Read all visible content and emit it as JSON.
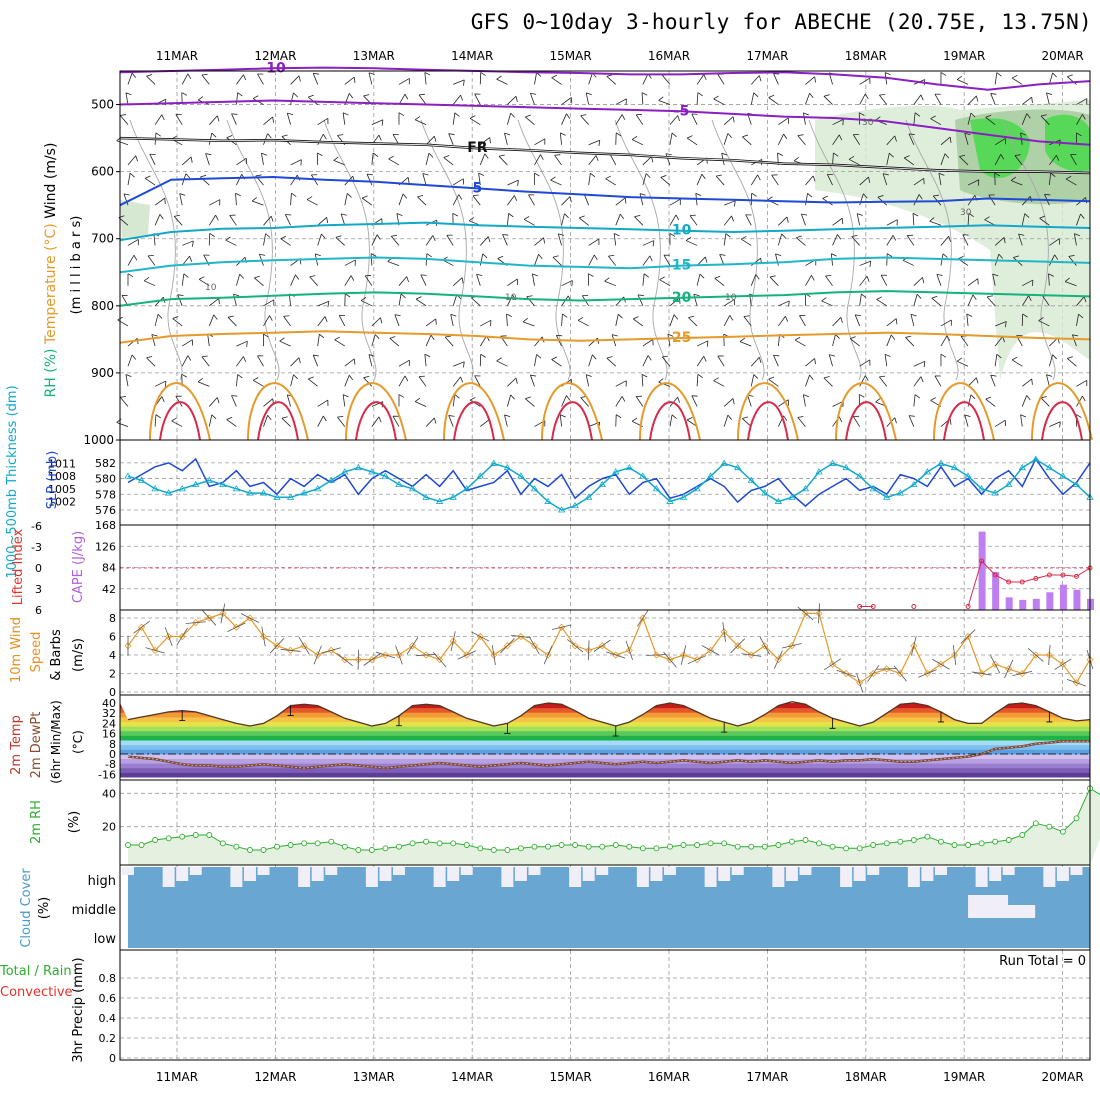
{
  "title": "GFS 0~10day 3-hourly for ABECHE (20.75E, 13.75N)",
  "colors": {
    "purple": "#8a1fc2",
    "blue": "#1f49d6",
    "teal": "#1fb7c8",
    "cyan": "#12a9c9",
    "green": "#13b37b",
    "orange": "#e69a2a",
    "red": "#d82b4a",
    "magenta": "#c21a78",
    "precipLabel": "#e5332a",
    "rhGreen": "#2fae2f",
    "cloudBlue": "#6aa6d2"
  },
  "chart_data": [
    {
      "type": "line",
      "panel": "upper-air",
      "title": "",
      "ylabel_parts": [
        "Wind (m/s)",
        "Temperature (°C)",
        "RH (%)"
      ],
      "ylabel_units": "(m i l l i b a r s)",
      "x": [
        "11MAR",
        "12MAR",
        "13MAR",
        "14MAR",
        "15MAR",
        "16MAR",
        "17MAR",
        "18MAR",
        "19MAR",
        "20MAR"
      ],
      "yticks": [
        "500",
        "600",
        "700",
        "800",
        "900",
        "1000"
      ],
      "ylim": [
        1000,
        450
      ],
      "isotherms": [
        {
          "name": "-10",
          "label": "-10",
          "p": [
            452,
            450,
            448,
            446,
            445,
            446,
            448,
            450,
            452,
            453,
            455,
            455,
            453,
            452,
            455,
            460,
            470,
            478,
            470,
            465
          ]
        },
        {
          "name": "-5",
          "label": "-5",
          "p": [
            500,
            498,
            496,
            494,
            496,
            498,
            500,
            502,
            504,
            506,
            508,
            510,
            514,
            518,
            520,
            525,
            535,
            545,
            555,
            560
          ]
        },
        {
          "name": "0",
          "label": "FR",
          "p": [
            550,
            552,
            554,
            553,
            556,
            558,
            560,
            565,
            568,
            572,
            575,
            580,
            583,
            588,
            590,
            594,
            598,
            600,
            600,
            602
          ]
        },
        {
          "name": "5",
          "label": "5",
          "p": [
            650,
            612,
            610,
            608,
            612,
            615,
            620,
            625,
            630,
            634,
            638,
            640,
            642,
            644,
            646,
            645,
            644,
            640,
            642,
            644
          ]
        },
        {
          "name": "10",
          "label": "10",
          "p": [
            702,
            690,
            685,
            684,
            680,
            678,
            676,
            680,
            682,
            684,
            686,
            688,
            690,
            688,
            686,
            684,
            682,
            680,
            682,
            684
          ]
        },
        {
          "name": "15",
          "label": "15",
          "p": [
            750,
            740,
            735,
            732,
            730,
            728,
            730,
            735,
            740,
            742,
            744,
            740,
            738,
            735,
            730,
            728,
            730,
            732,
            734,
            736
          ]
        },
        {
          "name": "20",
          "label": "20",
          "p": [
            800,
            790,
            788,
            785,
            782,
            780,
            782,
            786,
            790,
            792,
            790,
            788,
            786,
            784,
            780,
            778,
            780,
            782,
            784,
            786
          ]
        },
        {
          "name": "25",
          "label": "25",
          "p": [
            855,
            845,
            842,
            840,
            838,
            840,
            842,
            845,
            850,
            852,
            850,
            848,
            846,
            844,
            842,
            840,
            842,
            845,
            848,
            850
          ]
        }
      ],
      "contour_labels": [
        "30",
        "30",
        "10",
        "10",
        "10"
      ]
    },
    {
      "type": "line",
      "panel": "thickness-slp",
      "ylabel": "1000~500mb Thickness (dm)",
      "ylabel2": "SLP (mb)",
      "yticks_left": [
        "576",
        "578",
        "580",
        "582"
      ],
      "yticks_right": [
        "1002",
        "1005",
        "1008",
        "1011"
      ],
      "series": [
        {
          "name": "Thickness",
          "values": [
            579.5,
            580.5,
            581.5,
            582,
            581,
            582.5,
            579,
            579.5,
            581,
            579,
            579.5,
            578,
            580,
            579,
            580.5,
            579.5,
            580.5,
            578,
            580,
            581,
            580,
            579,
            580.5,
            579,
            581,
            578.5,
            579,
            579.5,
            581,
            578,
            580,
            579,
            580.5,
            577.5,
            579,
            580,
            580.5,
            578,
            579.5,
            580,
            577.5,
            578,
            579,
            580,
            579,
            577,
            578.5,
            579,
            580,
            578,
            576.5,
            578,
            579,
            580,
            578.5,
            579,
            578,
            580.5,
            580,
            579,
            581.5,
            579,
            580,
            578,
            580,
            581,
            579,
            582.5,
            580,
            578,
            579.5,
            582
          ],
          "color": "#1f49d6"
        },
        {
          "name": "SLP",
          "values": [
            1008,
            1007,
            1005,
            1004,
            1005,
            1006,
            1007,
            1006,
            1005,
            1004,
            1004,
            1003,
            1003,
            1004,
            1005,
            1007,
            1009,
            1010,
            1009,
            1008,
            1006,
            1005,
            1003,
            1002,
            1003,
            1005,
            1008,
            1011,
            1010,
            1008,
            1005,
            1002,
            1000,
            1001,
            1003,
            1006,
            1009,
            1010,
            1008,
            1005,
            1002,
            1003,
            1005,
            1008,
            1011,
            1010,
            1007,
            1004,
            1002,
            1003,
            1005,
            1009,
            1011,
            1010,
            1008,
            1005,
            1003,
            1004,
            1006,
            1009,
            1011,
            1010,
            1008,
            1005,
            1004,
            1006,
            1010,
            1012,
            1010,
            1008,
            1006,
            1003
          ],
          "color": "#12a9c9"
        }
      ]
    },
    {
      "type": "bar",
      "panel": "cape-li",
      "ylabel": "Lifted Index",
      "ylabel2": "CAPE (J/kg)",
      "yticks_left": [
        "-6",
        "-3",
        "0",
        "3",
        "6"
      ],
      "yticks_right": [
        "168",
        "126",
        "84",
        "42"
      ],
      "series": [
        {
          "name": "CAPE",
          "values": [
            0,
            0,
            0,
            0,
            0,
            0,
            0,
            0,
            0,
            0,
            0,
            0,
            0,
            0,
            0,
            0,
            0,
            0,
            0,
            0,
            0,
            0,
            0,
            0,
            0,
            0,
            0,
            0,
            0,
            0,
            0,
            0,
            0,
            0,
            0,
            0,
            0,
            0,
            0,
            0,
            0,
            0,
            0,
            0,
            0,
            0,
            0,
            0,
            0,
            0,
            0,
            0,
            0,
            0,
            0,
            0,
            0,
            0,
            0,
            0,
            0,
            0,
            0,
            155,
            75,
            25,
            20,
            22,
            35,
            50,
            40,
            22
          ],
          "color": "#bf7ff0"
        },
        {
          "name": "Lifted Index",
          "values": [
            null,
            null,
            null,
            null,
            null,
            null,
            null,
            null,
            null,
            null,
            null,
            null,
            null,
            null,
            null,
            null,
            null,
            null,
            null,
            null,
            null,
            null,
            null,
            null,
            null,
            null,
            null,
            null,
            null,
            null,
            null,
            null,
            null,
            null,
            null,
            null,
            null,
            null,
            null,
            null,
            null,
            null,
            null,
            null,
            null,
            null,
            null,
            null,
            null,
            null,
            null,
            null,
            null,
            null,
            5.5,
            5.5,
            null,
            null,
            5.5,
            null,
            null,
            null,
            5.5,
            -1,
            1,
            2,
            2,
            1.5,
            1,
            1,
            1.2,
            0
          ],
          "color": "#e5332a"
        }
      ]
    },
    {
      "type": "line",
      "panel": "wind10m",
      "ylabel": "10m Wind Speed & Barbs (m/s)",
      "yticks": [
        "0",
        "2",
        "4",
        "6",
        "8"
      ],
      "ylim": [
        0,
        9.5
      ],
      "series": [
        {
          "name": "10m Wind Speed",
          "values": [
            5,
            7,
            4.5,
            6,
            6,
            7.5,
            8,
            8.5,
            7,
            8,
            6,
            5,
            4.5,
            5,
            4,
            4.5,
            3.5,
            3.5,
            3.5,
            4,
            4,
            5,
            4,
            3.5,
            5.5,
            4,
            6,
            4,
            5,
            6,
            5,
            4,
            7,
            5,
            4.5,
            5,
            4,
            4.5,
            8,
            4,
            3.5,
            4,
            3.5,
            4.5,
            6.5,
            5,
            4,
            5,
            3.5,
            5,
            8.5,
            8.5,
            3,
            2,
            1,
            2,
            2.5,
            2,
            5,
            2,
            3,
            4,
            6,
            2,
            3,
            2.5,
            2,
            4,
            4,
            3,
            1,
            3.5
          ],
          "color": "#e69a2a"
        }
      ]
    },
    {
      "type": "area",
      "panel": "temp-dew",
      "ylabel": "2m Temp",
      "ylabel2": "2m DewPt",
      "ylabel3": "(6hr Min/Max)",
      "ylabel4": "(°C)",
      "yticks": [
        "-16",
        "-8",
        "0",
        "8",
        "16",
        "24",
        "32",
        "40"
      ],
      "ylim": [
        -20,
        44
      ],
      "series": [
        {
          "name": "2m Temp",
          "values": [
            27,
            29,
            31,
            33,
            34,
            33,
            30,
            27,
            24,
            22,
            24,
            30,
            38,
            39,
            38,
            33,
            28,
            25,
            22,
            24,
            30,
            38,
            39,
            38,
            33,
            28,
            25,
            22,
            24,
            30,
            38,
            40,
            39,
            34,
            28,
            25,
            22,
            25,
            31,
            38,
            40,
            38,
            33,
            28,
            25,
            22,
            25,
            31,
            38,
            41,
            39,
            33,
            28,
            25,
            22,
            25,
            32,
            39,
            40,
            38,
            33,
            27,
            24,
            24,
            32,
            39,
            40,
            38,
            33,
            28,
            26,
            27
          ]
        },
        {
          "name": "2m DewPt",
          "values": [
            -2,
            -3,
            -4,
            -6,
            -8,
            -9,
            -9,
            -10,
            -10,
            -9,
            -8,
            -9,
            -10,
            -11,
            -10,
            -9,
            -8,
            -9,
            -10,
            -11,
            -10,
            -9,
            -8,
            -7,
            -8,
            -9,
            -10,
            -9,
            -8,
            -7,
            -8,
            -9,
            -8,
            -7,
            -6,
            -7,
            -8,
            -7,
            -6,
            -7,
            -6,
            -5,
            -6,
            -7,
            -6,
            -5,
            -6,
            -5,
            -6,
            -7,
            -6,
            -5,
            -6,
            -5,
            -5,
            -4,
            -5,
            -6,
            -6,
            -5,
            -4,
            -3,
            -2,
            0,
            4,
            5,
            6,
            8,
            9,
            10,
            10,
            10
          ]
        }
      ]
    },
    {
      "type": "area",
      "panel": "rh2m",
      "ylabel": "2m RH",
      "ylabel2": "(%)",
      "yticks": [
        "20",
        "40"
      ],
      "ylim": [
        0,
        45
      ],
      "series": [
        {
          "name": "2m RH",
          "values": [
            9,
            9,
            12,
            13,
            14,
            15,
            15,
            10,
            8,
            6,
            6,
            8,
            9,
            10,
            10,
            11,
            8,
            6,
            6,
            7,
            8,
            10,
            11,
            10,
            10,
            9,
            7,
            6,
            6,
            7,
            8,
            8,
            9,
            9,
            8,
            8,
            9,
            8,
            7,
            7,
            8,
            9,
            9,
            10,
            10,
            8,
            8,
            8,
            9,
            11,
            12,
            10,
            8,
            7,
            7,
            9,
            10,
            11,
            12,
            14,
            11,
            9,
            9,
            10,
            11,
            12,
            15,
            22,
            20,
            17,
            25,
            43,
            38,
            40
          ],
          "color": "#2fae2f"
        }
      ]
    },
    {
      "type": "bar",
      "panel": "cloud",
      "ylabel": "Cloud Cover",
      "ylabel2": "(%)",
      "levels": [
        "high",
        "middle",
        "low"
      ]
    },
    {
      "type": "bar",
      "panel": "precip",
      "ylabel": "Total / Rain",
      "ylabel2": "Convective",
      "ylabel3": "3hr Precip (mm)",
      "annotation": "Run Total = 0",
      "yticks": [
        "0",
        "0.2",
        "0.4",
        "0.6",
        "0.8"
      ],
      "ylim": [
        0,
        1
      ]
    }
  ]
}
